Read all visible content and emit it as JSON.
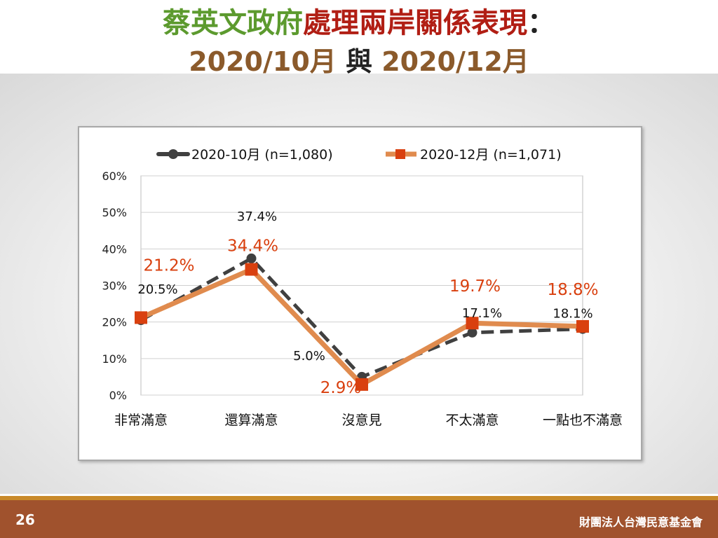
{
  "title": {
    "part1": "蔡英文政府",
    "part2": "處理兩岸關係表現",
    "colon": "：",
    "line2_a": "2020/10月",
    "line2_mid": " 與 ",
    "line2_b": "2020/12月"
  },
  "footer": {
    "page_number": "26",
    "organization": "財團法人台灣民意基金會"
  },
  "colors": {
    "title_green": "#5c9a2e",
    "title_red": "#b11e14",
    "title_brown": "#8B5A2B",
    "series_oct": "#404040",
    "series_dec": "#E08B4E",
    "marker_dec": "#D9400F",
    "label_dec": "#D9400F",
    "footer": "#a0522d"
  },
  "chart_data": {
    "type": "line",
    "categories": [
      "非常滿意",
      "還算滿意",
      "沒意見",
      "不太滿意",
      "一點也不滿意"
    ],
    "y_ticks": [
      "0%",
      "10%",
      "20%",
      "30%",
      "40%",
      "50%",
      "60%"
    ],
    "ylim": [
      0,
      60
    ],
    "grid": true,
    "legend_position": "top",
    "series": [
      {
        "name": "2020-10月 (n=1,080)",
        "values": [
          20.5,
          37.4,
          5.0,
          17.1,
          18.1
        ],
        "labels": [
          "20.5%",
          "37.4%",
          "5.0%",
          "17.1%",
          "18.1%"
        ],
        "style": "dashed"
      },
      {
        "name": "2020-12月 (n=1,071)",
        "values": [
          21.2,
          34.4,
          2.9,
          19.7,
          18.8
        ],
        "labels": [
          "21.2%",
          "34.4%",
          "2.9%",
          "19.7%",
          "18.8%"
        ],
        "style": "solid"
      }
    ]
  }
}
